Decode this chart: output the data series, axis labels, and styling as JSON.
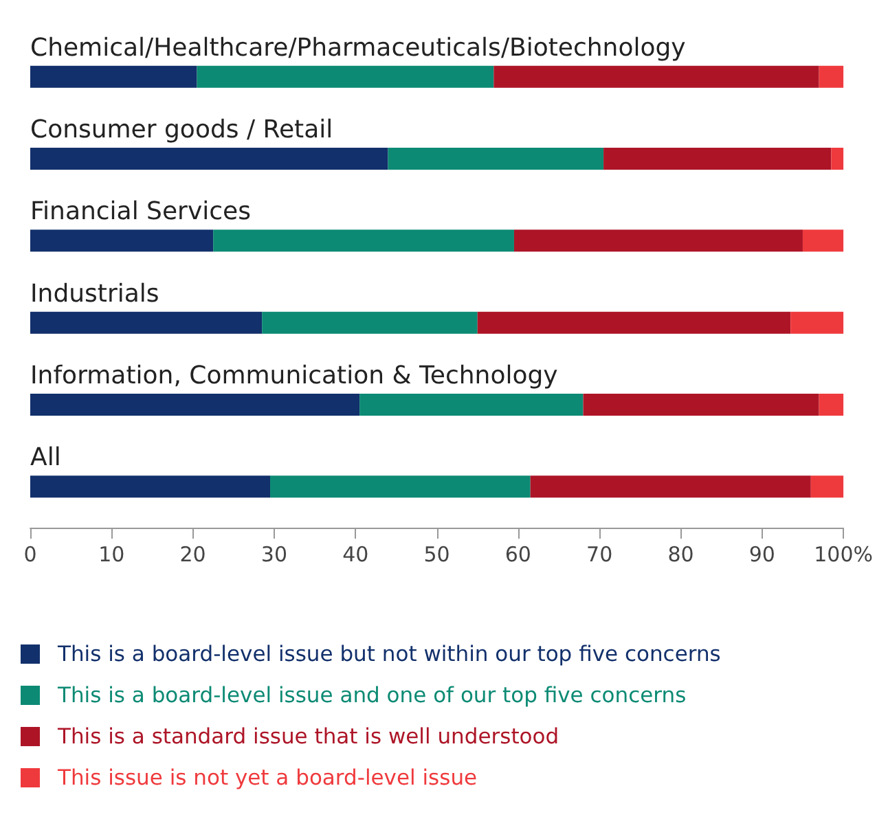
{
  "chart_data": {
    "type": "bar",
    "orientation": "horizontal",
    "stacked": true,
    "categories": [
      "Chemical/Healthcare/Pharmaceuticals/Biotechnology",
      "Consumer goods / Retail",
      "Financial Services",
      "Industrials",
      "Information, Communication & Technology",
      "All"
    ],
    "series": [
      {
        "name": "This is a board-level issue but not within our top five concerns",
        "color": "#12306b",
        "values": [
          20.5,
          44,
          22.5,
          28.5,
          40.5,
          29.5
        ]
      },
      {
        "name": "This is a board-level issue and one of our top five concerns",
        "color": "#0c8a74",
        "values": [
          36.5,
          26.5,
          37,
          26.5,
          27.5,
          32
        ]
      },
      {
        "name": "This is a standard issue that is well understood",
        "color": "#ad1527",
        "values": [
          40,
          28,
          35.5,
          38.5,
          29,
          34.5
        ]
      },
      {
        "name": "This issue is not yet a board-level issue",
        "color": "#ef3a3d",
        "values": [
          3,
          1.5,
          5,
          6.5,
          3,
          4
        ]
      }
    ],
    "xlim": [
      0,
      100
    ],
    "xticks": [
      0,
      10,
      20,
      30,
      40,
      50,
      60,
      70,
      80,
      90,
      {
        "value": 100,
        "label": "100%"
      }
    ],
    "grid": false,
    "legend": "bottom left"
  }
}
